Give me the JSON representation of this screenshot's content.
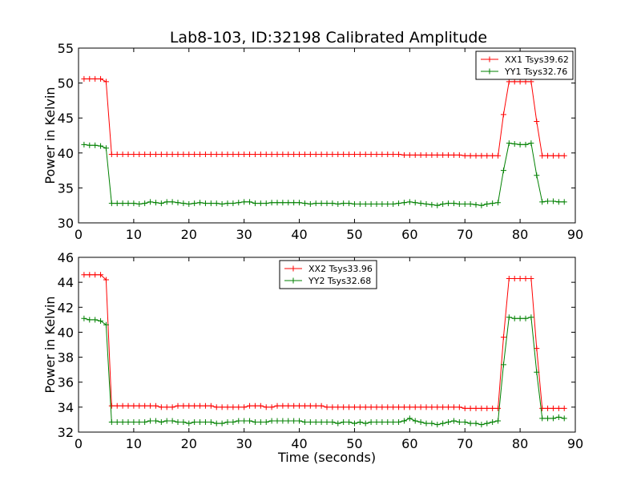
{
  "title": "Lab8-103, ID:32198 Calibrated Amplitude",
  "chart_data": [
    {
      "type": "line",
      "title": "Lab8-103, ID:32198 Calibrated Amplitude",
      "xlabel": "",
      "ylabel": "Power in Kelvin",
      "xlim": [
        0,
        90
      ],
      "ylim": [
        30,
        55
      ],
      "xticks": [
        0,
        10,
        20,
        30,
        40,
        50,
        60,
        70,
        80,
        90
      ],
      "yticks": [
        30,
        35,
        40,
        45,
        50,
        55
      ],
      "grid": false,
      "legend_position": "top-right",
      "x": [
        1,
        2,
        3,
        4,
        5,
        6,
        7,
        8,
        9,
        10,
        11,
        12,
        13,
        14,
        15,
        16,
        17,
        18,
        19,
        20,
        21,
        22,
        23,
        24,
        25,
        26,
        27,
        28,
        29,
        30,
        31,
        32,
        33,
        34,
        35,
        36,
        37,
        38,
        39,
        40,
        41,
        42,
        43,
        44,
        45,
        46,
        47,
        48,
        49,
        50,
        51,
        52,
        53,
        54,
        55,
        56,
        57,
        58,
        59,
        60,
        61,
        62,
        63,
        64,
        65,
        66,
        67,
        68,
        69,
        70,
        71,
        72,
        73,
        74,
        75,
        76,
        77,
        78,
        79,
        80,
        81,
        82,
        83,
        84,
        85,
        86,
        87,
        88
      ],
      "series": [
        {
          "name": "XX1 Tsys39.62",
          "color": "#ff0000",
          "values": [
            50.6,
            50.6,
            50.6,
            50.6,
            50.2,
            39.8,
            39.8,
            39.8,
            39.8,
            39.8,
            39.8,
            39.8,
            39.8,
            39.8,
            39.8,
            39.8,
            39.8,
            39.8,
            39.8,
            39.8,
            39.8,
            39.8,
            39.8,
            39.8,
            39.8,
            39.8,
            39.8,
            39.8,
            39.8,
            39.8,
            39.8,
            39.8,
            39.8,
            39.8,
            39.8,
            39.8,
            39.8,
            39.8,
            39.8,
            39.8,
            39.8,
            39.8,
            39.8,
            39.8,
            39.8,
            39.8,
            39.8,
            39.8,
            39.8,
            39.8,
            39.8,
            39.8,
            39.8,
            39.8,
            39.8,
            39.8,
            39.8,
            39.8,
            39.7,
            39.7,
            39.7,
            39.7,
            39.7,
            39.7,
            39.7,
            39.7,
            39.7,
            39.7,
            39.7,
            39.6,
            39.6,
            39.6,
            39.6,
            39.6,
            39.6,
            39.6,
            45.5,
            50.2,
            50.2,
            50.2,
            50.2,
            50.2,
            44.5,
            39.6,
            39.6,
            39.6,
            39.6,
            39.6
          ]
        },
        {
          "name": "YY1 Tsys32.76",
          "color": "#008000",
          "values": [
            41.2,
            41.1,
            41.1,
            41.0,
            40.7,
            32.8,
            32.8,
            32.8,
            32.8,
            32.8,
            32.7,
            32.8,
            33.0,
            32.9,
            32.8,
            33.0,
            33.0,
            32.9,
            32.8,
            32.7,
            32.8,
            32.9,
            32.8,
            32.8,
            32.8,
            32.7,
            32.8,
            32.8,
            32.9,
            33.0,
            33.0,
            32.8,
            32.8,
            32.8,
            32.9,
            32.9,
            32.9,
            32.9,
            32.9,
            32.9,
            32.8,
            32.7,
            32.8,
            32.8,
            32.8,
            32.8,
            32.7,
            32.8,
            32.8,
            32.7,
            32.7,
            32.7,
            32.7,
            32.7,
            32.7,
            32.7,
            32.7,
            32.8,
            32.9,
            33.0,
            32.9,
            32.8,
            32.7,
            32.6,
            32.5,
            32.7,
            32.8,
            32.8,
            32.7,
            32.7,
            32.7,
            32.6,
            32.5,
            32.7,
            32.8,
            32.9,
            37.5,
            41.4,
            41.3,
            41.2,
            41.2,
            41.4,
            36.8,
            33.0,
            33.1,
            33.1,
            33.0,
            33.0
          ]
        }
      ]
    },
    {
      "type": "line",
      "title": "",
      "xlabel": "Time (seconds)",
      "ylabel": "Power in Kelvin",
      "xlim": [
        0,
        90
      ],
      "ylim": [
        32,
        46
      ],
      "xticks": [
        0,
        10,
        20,
        30,
        40,
        50,
        60,
        70,
        80,
        90
      ],
      "yticks": [
        32,
        34,
        36,
        38,
        40,
        42,
        44,
        46
      ],
      "grid": false,
      "legend_position": "top-center",
      "x": [
        1,
        2,
        3,
        4,
        5,
        6,
        7,
        8,
        9,
        10,
        11,
        12,
        13,
        14,
        15,
        16,
        17,
        18,
        19,
        20,
        21,
        22,
        23,
        24,
        25,
        26,
        27,
        28,
        29,
        30,
        31,
        32,
        33,
        34,
        35,
        36,
        37,
        38,
        39,
        40,
        41,
        42,
        43,
        44,
        45,
        46,
        47,
        48,
        49,
        50,
        51,
        52,
        53,
        54,
        55,
        56,
        57,
        58,
        59,
        60,
        61,
        62,
        63,
        64,
        65,
        66,
        67,
        68,
        69,
        70,
        71,
        72,
        73,
        74,
        75,
        76,
        77,
        78,
        79,
        80,
        81,
        82,
        83,
        84,
        85,
        86,
        87,
        88
      ],
      "series": [
        {
          "name": "XX2 Tsys33.96",
          "color": "#ff0000",
          "values": [
            44.6,
            44.6,
            44.6,
            44.6,
            44.2,
            34.1,
            34.1,
            34.1,
            34.1,
            34.1,
            34.1,
            34.1,
            34.1,
            34.1,
            34.0,
            34.0,
            34.0,
            34.1,
            34.1,
            34.1,
            34.1,
            34.1,
            34.1,
            34.1,
            34.0,
            34.0,
            34.0,
            34.0,
            34.0,
            34.0,
            34.1,
            34.1,
            34.1,
            34.0,
            34.0,
            34.1,
            34.1,
            34.1,
            34.1,
            34.1,
            34.1,
            34.1,
            34.1,
            34.1,
            34.0,
            34.0,
            34.0,
            34.0,
            34.0,
            34.0,
            34.0,
            34.0,
            34.0,
            34.0,
            34.0,
            34.0,
            34.0,
            34.0,
            34.0,
            34.0,
            34.0,
            34.0,
            34.0,
            34.0,
            34.0,
            34.0,
            34.0,
            34.0,
            34.0,
            33.9,
            33.9,
            33.9,
            33.9,
            33.9,
            33.9,
            33.9,
            39.6,
            44.3,
            44.3,
            44.3,
            44.3,
            44.3,
            38.7,
            33.9,
            33.9,
            33.9,
            33.9,
            33.9
          ]
        },
        {
          "name": "YY2 Tsys32.68",
          "color": "#008000",
          "values": [
            41.1,
            41.0,
            41.0,
            40.9,
            40.6,
            32.8,
            32.8,
            32.8,
            32.8,
            32.8,
            32.8,
            32.8,
            32.9,
            32.9,
            32.8,
            32.9,
            32.9,
            32.8,
            32.8,
            32.7,
            32.8,
            32.8,
            32.8,
            32.8,
            32.7,
            32.7,
            32.8,
            32.8,
            32.9,
            32.9,
            32.9,
            32.8,
            32.8,
            32.8,
            32.9,
            32.9,
            32.9,
            32.9,
            32.9,
            32.9,
            32.8,
            32.8,
            32.8,
            32.8,
            32.8,
            32.8,
            32.7,
            32.8,
            32.8,
            32.7,
            32.8,
            32.7,
            32.8,
            32.8,
            32.8,
            32.8,
            32.8,
            32.8,
            32.9,
            33.1,
            32.9,
            32.8,
            32.7,
            32.7,
            32.6,
            32.7,
            32.8,
            32.9,
            32.8,
            32.8,
            32.7,
            32.7,
            32.6,
            32.7,
            32.8,
            32.9,
            37.4,
            41.2,
            41.1,
            41.1,
            41.1,
            41.2,
            36.8,
            33.1,
            33.1,
            33.1,
            33.2,
            33.1
          ]
        }
      ]
    }
  ]
}
